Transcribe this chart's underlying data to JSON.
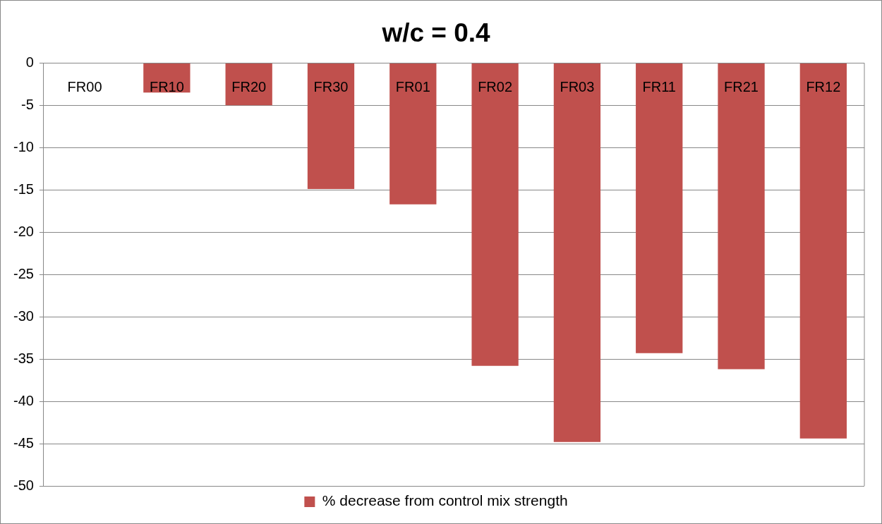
{
  "chart_data": {
    "type": "bar",
    "title": "w/c = 0.4",
    "categories": [
      "FR00",
      "FR10",
      "FR20",
      "FR30",
      "FR01",
      "FR02",
      "FR03",
      "FR11",
      "FR21",
      "FR12"
    ],
    "series": [
      {
        "name": "% decrease from control mix strength",
        "color": "#c0504d",
        "values": [
          0,
          -3.5,
          -5.0,
          -14.9,
          -16.7,
          -35.8,
          -44.8,
          -34.3,
          -36.2,
          -44.4
        ]
      }
    ],
    "ylim": [
      -50,
      0
    ],
    "yticks": [
      -50,
      -45,
      -40,
      -35,
      -30,
      -25,
      -20,
      -15,
      -10,
      -5,
      0
    ],
    "grid": "y",
    "legend": "bottom"
  }
}
